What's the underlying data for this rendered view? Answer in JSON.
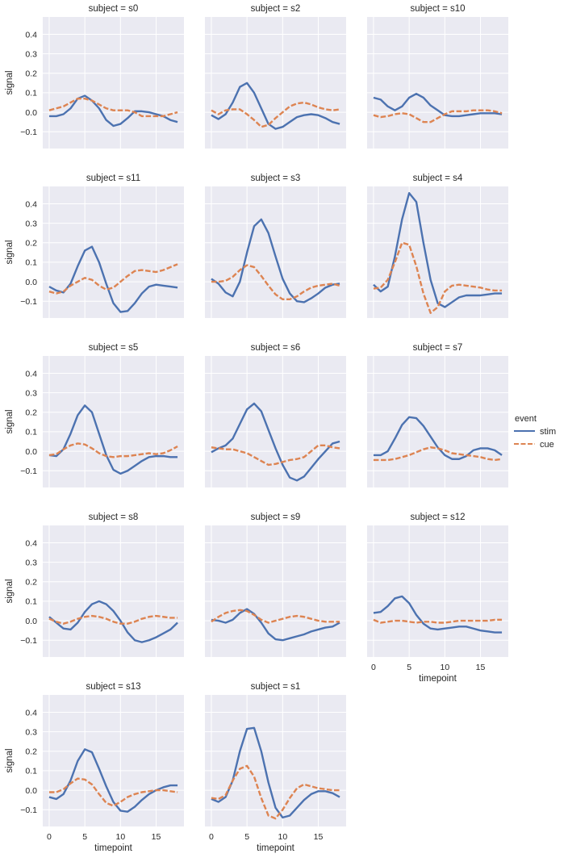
{
  "figure": {
    "background": "#EAEAF2",
    "grid": true,
    "grid_color": "#FFFFFF",
    "layout": {
      "rows": 5,
      "cols": 3
    },
    "xlabel": "timepoint",
    "ylabel": "signal",
    "xlim": [
      -0.9,
      18.9
    ],
    "ylim": [
      -0.186,
      0.489
    ],
    "xticks": [
      0,
      5,
      10,
      15
    ],
    "yticks": [
      -0.1,
      0.0,
      0.1,
      0.2,
      0.3,
      0.4
    ],
    "ytick_labels": [
      "−0.1",
      "0.0",
      "0.1",
      "0.2",
      "0.3",
      "0.4"
    ],
    "xtick_labels": [
      "0",
      "5",
      "10",
      "15"
    ],
    "legend": {
      "title": "event",
      "placement": "right",
      "entries": [
        {
          "label": "stim",
          "color": "#4C72B0",
          "style": "solid"
        },
        {
          "label": "cue",
          "color": "#DD8452",
          "style": "dashed"
        }
      ]
    }
  },
  "chart_data": [
    {
      "type": "line",
      "title": "subject = s0",
      "x": [
        0,
        1,
        2,
        3,
        4,
        5,
        6,
        7,
        8,
        9,
        10,
        11,
        12,
        13,
        14,
        15,
        16,
        17,
        18
      ],
      "series": [
        {
          "name": "stim",
          "values": [
            -0.02,
            -0.02,
            -0.01,
            0.02,
            0.07,
            0.085,
            0.06,
            0.02,
            -0.04,
            -0.07,
            -0.06,
            -0.03,
            0.005,
            0.005,
            0,
            -0.01,
            -0.02,
            -0.04,
            -0.05
          ]
        },
        {
          "name": "cue",
          "values": [
            0.01,
            0.02,
            0.03,
            0.05,
            0.07,
            0.07,
            0.06,
            0.04,
            0.02,
            0.01,
            0.01,
            0.01,
            0.0,
            -0.02,
            -0.02,
            -0.02,
            -0.02,
            -0.01,
            0.0
          ]
        }
      ]
    },
    {
      "type": "line",
      "title": "subject = s2",
      "x": [
        0,
        1,
        2,
        3,
        4,
        5,
        6,
        7,
        8,
        9,
        10,
        11,
        12,
        13,
        14,
        15,
        16,
        17,
        18
      ],
      "series": [
        {
          "name": "stim",
          "values": [
            -0.015,
            -0.035,
            -0.01,
            0.05,
            0.13,
            0.15,
            0.1,
            0.02,
            -0.06,
            -0.085,
            -0.075,
            -0.05,
            -0.025,
            -0.015,
            -0.01,
            -0.015,
            -0.03,
            -0.05,
            -0.06
          ]
        },
        {
          "name": "cue",
          "values": [
            0.01,
            -0.01,
            0.01,
            0.015,
            0.015,
            -0.01,
            -0.04,
            -0.075,
            -0.065,
            -0.03,
            0.0,
            0.03,
            0.045,
            0.05,
            0.04,
            0.025,
            0.015,
            0.01,
            0.015
          ]
        }
      ]
    },
    {
      "type": "line",
      "title": "subject = s10",
      "x": [
        0,
        1,
        2,
        3,
        4,
        5,
        6,
        7,
        8,
        9,
        10,
        11,
        12,
        13,
        14,
        15,
        16,
        17,
        18
      ],
      "series": [
        {
          "name": "stim",
          "values": [
            0.075,
            0.065,
            0.03,
            0.01,
            0.03,
            0.075,
            0.095,
            0.075,
            0.035,
            0.01,
            -0.015,
            -0.02,
            -0.02,
            -0.015,
            -0.01,
            -0.005,
            -0.005,
            -0.005,
            -0.01
          ]
        },
        {
          "name": "cue",
          "values": [
            -0.015,
            -0.025,
            -0.02,
            -0.01,
            -0.005,
            -0.01,
            -0.03,
            -0.05,
            -0.05,
            -0.03,
            -0.01,
            0.005,
            0.005,
            0.005,
            0.01,
            0.01,
            0.01,
            0.005,
            -0.005
          ]
        }
      ]
    },
    {
      "type": "line",
      "title": "subject = s11",
      "x": [
        0,
        1,
        2,
        3,
        4,
        5,
        6,
        7,
        8,
        9,
        10,
        11,
        12,
        13,
        14,
        15,
        16,
        17,
        18
      ],
      "series": [
        {
          "name": "stim",
          "values": [
            -0.025,
            -0.045,
            -0.055,
            -0.01,
            0.08,
            0.16,
            0.18,
            0.1,
            -0.01,
            -0.11,
            -0.155,
            -0.15,
            -0.11,
            -0.06,
            -0.025,
            -0.015,
            -0.02,
            -0.025,
            -0.03
          ]
        },
        {
          "name": "cue",
          "values": [
            -0.05,
            -0.06,
            -0.05,
            -0.02,
            0.0,
            0.02,
            0.01,
            -0.02,
            -0.04,
            -0.03,
            0.0,
            0.03,
            0.055,
            0.06,
            0.055,
            0.05,
            0.06,
            0.075,
            0.09
          ]
        }
      ]
    },
    {
      "type": "line",
      "title": "subject = s3",
      "x": [
        0,
        1,
        2,
        3,
        4,
        5,
        6,
        7,
        8,
        9,
        10,
        11,
        12,
        13,
        14,
        15,
        16,
        17,
        18
      ],
      "series": [
        {
          "name": "stim",
          "values": [
            0.015,
            -0.01,
            -0.055,
            -0.075,
            0.0,
            0.15,
            0.285,
            0.32,
            0.25,
            0.13,
            0.015,
            -0.06,
            -0.1,
            -0.105,
            -0.085,
            -0.06,
            -0.03,
            -0.015,
            -0.01
          ]
        },
        {
          "name": "cue",
          "values": [
            0.0,
            0.0,
            0.005,
            0.025,
            0.06,
            0.085,
            0.075,
            0.03,
            -0.02,
            -0.065,
            -0.09,
            -0.09,
            -0.075,
            -0.05,
            -0.03,
            -0.02,
            -0.015,
            -0.01,
            -0.02
          ]
        }
      ]
    },
    {
      "type": "line",
      "title": "subject = s4",
      "x": [
        0,
        1,
        2,
        3,
        4,
        5,
        6,
        7,
        8,
        9,
        10,
        11,
        12,
        13,
        14,
        15,
        16,
        17,
        18
      ],
      "series": [
        {
          "name": "stim",
          "values": [
            -0.015,
            -0.05,
            -0.025,
            0.13,
            0.32,
            0.455,
            0.41,
            0.2,
            0.01,
            -0.11,
            -0.13,
            -0.105,
            -0.08,
            -0.07,
            -0.07,
            -0.07,
            -0.065,
            -0.06,
            -0.06
          ]
        },
        {
          "name": "cue",
          "values": [
            -0.035,
            -0.03,
            0.01,
            0.1,
            0.2,
            0.19,
            0.08,
            -0.06,
            -0.16,
            -0.13,
            -0.05,
            -0.02,
            -0.015,
            -0.02,
            -0.025,
            -0.03,
            -0.04,
            -0.045,
            -0.045
          ]
        }
      ]
    },
    {
      "type": "line",
      "title": "subject = s5",
      "x": [
        0,
        1,
        2,
        3,
        4,
        5,
        6,
        7,
        8,
        9,
        10,
        11,
        12,
        13,
        14,
        15,
        16,
        17,
        18
      ],
      "series": [
        {
          "name": "stim",
          "values": [
            -0.02,
            -0.025,
            0.01,
            0.09,
            0.185,
            0.235,
            0.2,
            0.09,
            -0.02,
            -0.095,
            -0.115,
            -0.1,
            -0.075,
            -0.05,
            -0.03,
            -0.025,
            -0.025,
            -0.03,
            -0.03
          ]
        },
        {
          "name": "cue",
          "values": [
            -0.02,
            -0.015,
            0.01,
            0.03,
            0.04,
            0.035,
            0.015,
            -0.01,
            -0.025,
            -0.03,
            -0.025,
            -0.025,
            -0.02,
            -0.015,
            -0.01,
            -0.015,
            -0.01,
            0.005,
            0.025
          ]
        }
      ]
    },
    {
      "type": "line",
      "title": "subject = s6",
      "x": [
        0,
        1,
        2,
        3,
        4,
        5,
        6,
        7,
        8,
        9,
        10,
        11,
        12,
        13,
        14,
        15,
        16,
        17,
        18
      ],
      "series": [
        {
          "name": "stim",
          "values": [
            -0.005,
            0.015,
            0.03,
            0.065,
            0.14,
            0.215,
            0.245,
            0.205,
            0.11,
            0.015,
            -0.07,
            -0.135,
            -0.15,
            -0.13,
            -0.085,
            -0.04,
            0.0,
            0.04,
            0.05
          ]
        },
        {
          "name": "cue",
          "values": [
            0.02,
            0.015,
            0.01,
            0.01,
            0.0,
            -0.01,
            -0.03,
            -0.05,
            -0.07,
            -0.065,
            -0.055,
            -0.045,
            -0.04,
            -0.03,
            0.0,
            0.03,
            0.03,
            0.02,
            0.015
          ]
        }
      ]
    },
    {
      "type": "line",
      "title": "subject = s7",
      "x": [
        0,
        1,
        2,
        3,
        4,
        5,
        6,
        7,
        8,
        9,
        10,
        11,
        12,
        13,
        14,
        15,
        16,
        17,
        18
      ],
      "series": [
        {
          "name": "stim",
          "values": [
            -0.02,
            -0.02,
            0.0,
            0.065,
            0.135,
            0.175,
            0.17,
            0.13,
            0.075,
            0.02,
            -0.02,
            -0.04,
            -0.04,
            -0.025,
            0.005,
            0.015,
            0.015,
            0.005,
            -0.02
          ]
        },
        {
          "name": "cue",
          "values": [
            -0.045,
            -0.045,
            -0.045,
            -0.04,
            -0.03,
            -0.02,
            -0.005,
            0.01,
            0.02,
            0.015,
            0.005,
            -0.01,
            -0.015,
            -0.02,
            -0.025,
            -0.03,
            -0.04,
            -0.045,
            -0.04
          ]
        }
      ]
    },
    {
      "type": "line",
      "title": "subject = s8",
      "x": [
        0,
        1,
        2,
        3,
        4,
        5,
        6,
        7,
        8,
        9,
        10,
        11,
        12,
        13,
        14,
        15,
        16,
        17,
        18
      ],
      "series": [
        {
          "name": "stim",
          "values": [
            0.02,
            -0.01,
            -0.04,
            -0.045,
            -0.01,
            0.045,
            0.085,
            0.1,
            0.085,
            0.05,
            0.0,
            -0.06,
            -0.1,
            -0.11,
            -0.1,
            -0.085,
            -0.065,
            -0.045,
            -0.01
          ]
        },
        {
          "name": "cue",
          "values": [
            0.01,
            -0.005,
            -0.015,
            -0.005,
            0.01,
            0.02,
            0.025,
            0.02,
            0.01,
            -0.005,
            -0.015,
            -0.015,
            -0.005,
            0.01,
            0.02,
            0.025,
            0.02,
            0.015,
            0.015
          ]
        }
      ]
    },
    {
      "type": "line",
      "title": "subject = s9",
      "x": [
        0,
        1,
        2,
        3,
        4,
        5,
        6,
        7,
        8,
        9,
        10,
        11,
        12,
        13,
        14,
        15,
        16,
        17,
        18
      ],
      "series": [
        {
          "name": "stim",
          "values": [
            0.005,
            0.0,
            -0.01,
            0.005,
            0.04,
            0.06,
            0.035,
            -0.01,
            -0.065,
            -0.095,
            -0.1,
            -0.09,
            -0.08,
            -0.07,
            -0.055,
            -0.045,
            -0.035,
            -0.03,
            -0.01
          ]
        },
        {
          "name": "cue",
          "values": [
            -0.005,
            0.02,
            0.04,
            0.05,
            0.055,
            0.05,
            0.03,
            0.005,
            -0.01,
            0.0,
            0.01,
            0.02,
            0.025,
            0.02,
            0.01,
            0.0,
            -0.005,
            -0.005,
            -0.005
          ]
        }
      ]
    },
    {
      "type": "line",
      "title": "subject = s12",
      "x": [
        0,
        1,
        2,
        3,
        4,
        5,
        6,
        7,
        8,
        9,
        10,
        11,
        12,
        13,
        14,
        15,
        16,
        17,
        18
      ],
      "series": [
        {
          "name": "stim",
          "values": [
            0.04,
            0.045,
            0.075,
            0.115,
            0.125,
            0.09,
            0.03,
            -0.015,
            -0.04,
            -0.045,
            -0.04,
            -0.035,
            -0.03,
            -0.03,
            -0.04,
            -0.05,
            -0.055,
            -0.06,
            -0.06
          ]
        },
        {
          "name": "cue",
          "values": [
            0.005,
            -0.01,
            -0.005,
            0.0,
            0.0,
            -0.005,
            -0.01,
            -0.005,
            -0.005,
            -0.01,
            -0.01,
            -0.005,
            0.0,
            0.0,
            0.0,
            0.0,
            0.0,
            0.005,
            0.005
          ]
        }
      ]
    },
    {
      "type": "line",
      "title": "subject = s13",
      "x": [
        0,
        1,
        2,
        3,
        4,
        5,
        6,
        7,
        8,
        9,
        10,
        11,
        12,
        13,
        14,
        15,
        16,
        17,
        18
      ],
      "series": [
        {
          "name": "stim",
          "values": [
            -0.035,
            -0.045,
            -0.02,
            0.05,
            0.15,
            0.21,
            0.195,
            0.11,
            0.02,
            -0.06,
            -0.105,
            -0.11,
            -0.085,
            -0.05,
            -0.02,
            0.0,
            0.015,
            0.025,
            0.025
          ]
        },
        {
          "name": "cue",
          "values": [
            -0.01,
            -0.01,
            0.005,
            0.035,
            0.06,
            0.055,
            0.03,
            -0.02,
            -0.065,
            -0.08,
            -0.06,
            -0.035,
            -0.02,
            -0.01,
            -0.005,
            0.0,
            0.0,
            -0.005,
            -0.01
          ]
        }
      ]
    },
    {
      "type": "line",
      "title": "subject = s1",
      "x": [
        0,
        1,
        2,
        3,
        4,
        5,
        6,
        7,
        8,
        9,
        10,
        11,
        12,
        13,
        14,
        15,
        16,
        17,
        18
      ],
      "series": [
        {
          "name": "stim",
          "values": [
            -0.045,
            -0.06,
            -0.035,
            0.05,
            0.2,
            0.315,
            0.32,
            0.2,
            0.04,
            -0.09,
            -0.14,
            -0.13,
            -0.09,
            -0.05,
            -0.02,
            -0.005,
            -0.005,
            -0.015,
            -0.035
          ]
        },
        {
          "name": "cue",
          "values": [
            -0.04,
            -0.045,
            -0.025,
            0.05,
            0.11,
            0.125,
            0.07,
            -0.04,
            -0.13,
            -0.145,
            -0.1,
            -0.04,
            0.01,
            0.03,
            0.02,
            0.01,
            0.005,
            0.0,
            0.0
          ]
        }
      ]
    }
  ]
}
